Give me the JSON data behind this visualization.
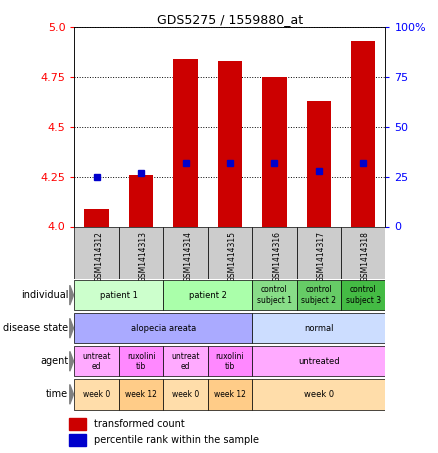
{
  "title": "GDS5275 / 1559880_at",
  "samples": [
    "GSM1414312",
    "GSM1414313",
    "GSM1414314",
    "GSM1414315",
    "GSM1414316",
    "GSM1414317",
    "GSM1414318"
  ],
  "transformed_counts": [
    4.09,
    4.26,
    4.84,
    4.83,
    4.75,
    4.63,
    4.93
  ],
  "percentile_ranks": [
    25,
    27,
    32,
    32,
    32,
    28,
    32
  ],
  "ylim": [
    4.0,
    5.0
  ],
  "yticks": [
    4.0,
    4.25,
    4.5,
    4.75,
    5.0
  ],
  "y2ticks_pct": [
    0,
    25,
    50,
    75,
    100
  ],
  "y2ticklabels": [
    "0",
    "25",
    "50",
    "75",
    "100%"
  ],
  "bar_color": "#cc0000",
  "dot_color": "#0000cc",
  "bar_bottom": 4.0,
  "annotation_rows": [
    {
      "label": "individual",
      "cells": [
        {
          "text": "patient 1",
          "colspan": 2,
          "color": "#ccffcc"
        },
        {
          "text": "patient 2",
          "colspan": 2,
          "color": "#aaffaa"
        },
        {
          "text": "control\nsubject 1",
          "colspan": 1,
          "color": "#88dd88"
        },
        {
          "text": "control\nsubject 2",
          "colspan": 1,
          "color": "#66cc66"
        },
        {
          "text": "control\nsubject 3",
          "colspan": 1,
          "color": "#44bb44"
        }
      ]
    },
    {
      "label": "disease state",
      "cells": [
        {
          "text": "alopecia areata",
          "colspan": 4,
          "color": "#aaaaff"
        },
        {
          "text": "normal",
          "colspan": 3,
          "color": "#ccddff"
        }
      ]
    },
    {
      "label": "agent",
      "cells": [
        {
          "text": "untreat\ned",
          "colspan": 1,
          "color": "#ffaaff"
        },
        {
          "text": "ruxolini\ntib",
          "colspan": 1,
          "color": "#ff88ff"
        },
        {
          "text": "untreat\ned",
          "colspan": 1,
          "color": "#ffaaff"
        },
        {
          "text": "ruxolini\ntib",
          "colspan": 1,
          "color": "#ff88ff"
        },
        {
          "text": "untreated",
          "colspan": 3,
          "color": "#ffaaff"
        }
      ]
    },
    {
      "label": "time",
      "cells": [
        {
          "text": "week 0",
          "colspan": 1,
          "color": "#ffddaa"
        },
        {
          "text": "week 12",
          "colspan": 1,
          "color": "#ffcc88"
        },
        {
          "text": "week 0",
          "colspan": 1,
          "color": "#ffddaa"
        },
        {
          "text": "week 12",
          "colspan": 1,
          "color": "#ffcc88"
        },
        {
          "text": "week 0",
          "colspan": 3,
          "color": "#ffddaa"
        }
      ]
    }
  ]
}
